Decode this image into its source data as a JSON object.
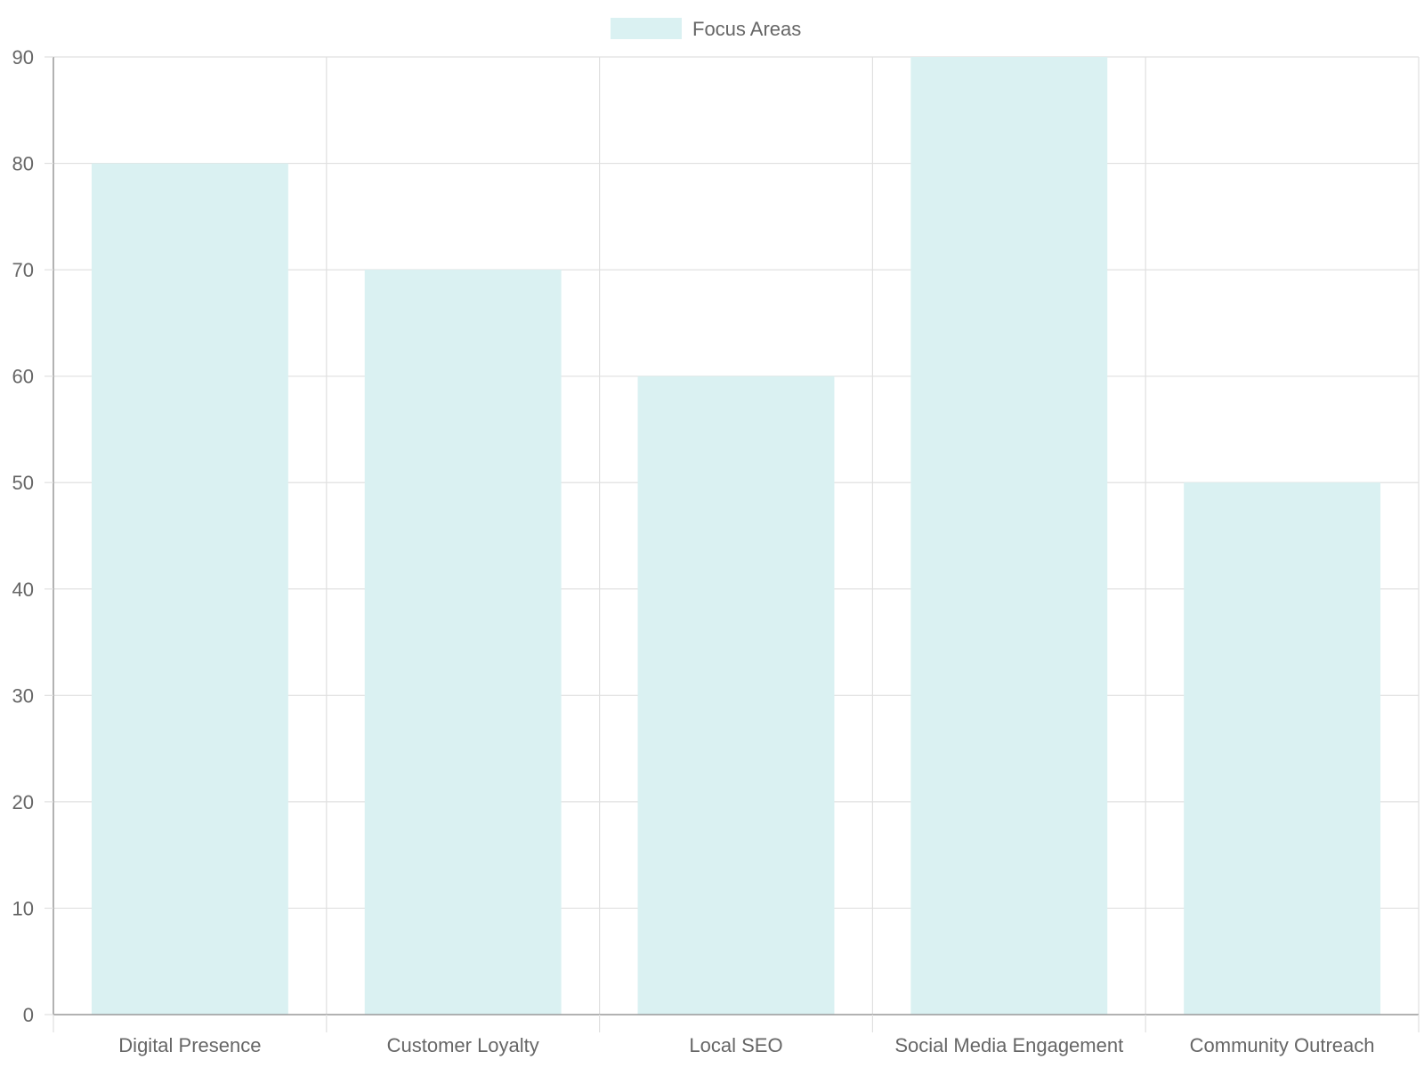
{
  "chart_data": {
    "type": "bar",
    "categories": [
      "Digital Presence",
      "Customer Loyalty",
      "Local SEO",
      "Social Media Engagement",
      "Community Outreach"
    ],
    "series": [
      {
        "name": "Focus Areas",
        "values": [
          80,
          70,
          60,
          90,
          50
        ],
        "color": "#daf1f2"
      }
    ],
    "title": "",
    "xlabel": "",
    "ylabel": "",
    "ylim": [
      0,
      90
    ],
    "yticks": [
      0,
      10,
      20,
      30,
      40,
      50,
      60,
      70,
      80,
      90
    ],
    "grid": true,
    "legend_position": "top",
    "grid_color": "#e0e0e0",
    "axis_color": "#999999"
  }
}
